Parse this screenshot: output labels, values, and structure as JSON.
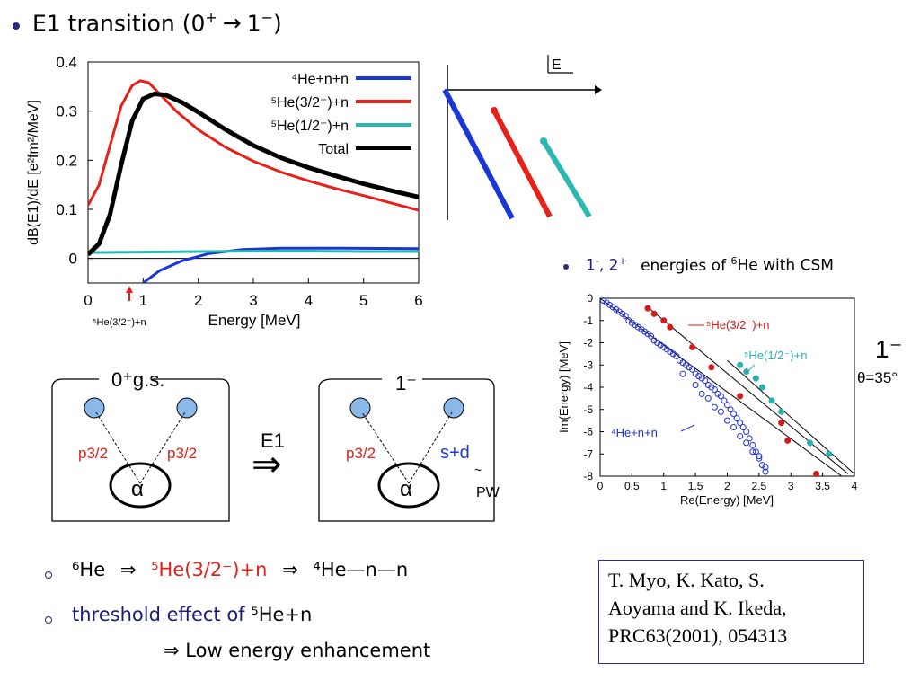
{
  "heading": {
    "text": "E1 transition (0",
    "sup": "+",
    "arrow": "→",
    "tail": "1",
    "tail_sup": "−",
    "close": ")"
  },
  "main_plot": {
    "ylabel": "dB(E1)/dE [e²fm²/MeV]",
    "xlabel": "Energy [MeV]",
    "threshold_label": "⁵He(3/2⁻)+n",
    "x_ticks": [
      "0",
      "1",
      "2",
      "3",
      "4",
      "5",
      "6"
    ],
    "y_ticks": [
      "0",
      "0.1",
      "0.2",
      "0.3",
      "0.4"
    ],
    "legend": [
      {
        "label": "⁴He+n+n",
        "color": "#1a35d8"
      },
      {
        "label": "⁵He(3/2⁻)+n",
        "color": "#e8201a"
      },
      {
        "label": "⁵He(1/2⁻)+n",
        "color": "#2bb8b0"
      },
      {
        "label": "Total",
        "color": "#000000"
      }
    ]
  },
  "schematic": {
    "axis_label": "E"
  },
  "csm_title": {
    "prefix": "1",
    "prefix_sup": "-",
    "mid": ", 2",
    "mid_sup": "+",
    "rest": "energies of ",
    "nuc_sup": "6",
    "nuc": "He with CSM"
  },
  "csm_plot": {
    "xlabel": "Re(Energy) [MeV]",
    "ylabel": "Im(Energy) [MeV]",
    "x_ticks": [
      "0",
      "0.5",
      "1",
      "1.5",
      "2",
      "2.5",
      "3",
      "3.5",
      "4"
    ],
    "y_ticks": [
      "0",
      "-1",
      "-2",
      "-3",
      "-4",
      "-5",
      "-6",
      "-7",
      "-8"
    ],
    "ann_red": "⁵He(3/2⁻)+n",
    "ann_cyan": "⁵He(1/2⁻)+n",
    "ann_blue": "⁴He+n+n",
    "state": "1⁻",
    "theta": "θ=35°"
  },
  "diagram": {
    "left_title": "0⁺g.s.",
    "left_p1": "p3/2",
    "left_p2": "p3/2",
    "alpha": "α",
    "mid_label": "E1",
    "mid_arrow": "⇒",
    "right_title": "1⁻",
    "right_p": "p3/2",
    "right_sd": "s+d",
    "right_pw": "PW"
  },
  "bullets": [
    {
      "parts": [
        "⁶He",
        "⇒",
        "⁵He(3/2⁻)+n",
        "⇒",
        "⁴He—n—n"
      ]
    },
    {
      "parts": [
        "threshold effect of",
        "⁵He+n"
      ]
    },
    {
      "parts": [
        "⇒ Low energy enhancement"
      ]
    }
  ],
  "reference": {
    "line1": "T. Myo, K. Kato, S.",
    "line2": "Aoyama and K. Ikeda,",
    "line3": "PRC63(2001),   054313"
  },
  "chart_data": [
    {
      "type": "line",
      "title": "",
      "xlabel": "Energy [MeV]",
      "ylabel": "dB(E1)/dE [e²fm²/MeV]",
      "xlim": [
        0,
        6
      ],
      "ylim": [
        -0.05,
        0.4
      ],
      "legend_position": "top-right",
      "series": [
        {
          "name": "⁴He+n+n",
          "color": "#1a35d8",
          "x": [
            1.0,
            1.3,
            1.7,
            2.2,
            2.8,
            3.5,
            4.5,
            6.0
          ],
          "y": [
            -0.05,
            -0.025,
            -0.005,
            0.01,
            0.018,
            0.021,
            0.021,
            0.02
          ]
        },
        {
          "name": "⁵He(3/2⁻)+n",
          "color": "#e8201a",
          "x": [
            0,
            0.2,
            0.4,
            0.6,
            0.8,
            0.95,
            1.1,
            1.3,
            1.6,
            2.0,
            2.5,
            3.0,
            3.5,
            4.0,
            4.5,
            5.0,
            5.5,
            6.0
          ],
          "y": [
            0.108,
            0.15,
            0.23,
            0.31,
            0.352,
            0.362,
            0.358,
            0.335,
            0.3,
            0.262,
            0.226,
            0.198,
            0.176,
            0.158,
            0.142,
            0.128,
            0.113,
            0.098
          ]
        },
        {
          "name": "⁵He(1/2⁻)+n",
          "color": "#2bb8b0",
          "x": [
            0,
            1,
            2,
            3,
            4,
            5,
            6
          ],
          "y": [
            0.012,
            0.013,
            0.014,
            0.015,
            0.015,
            0.014,
            0.014
          ]
        },
        {
          "name": "Total",
          "color": "#000000",
          "x": [
            0,
            0.2,
            0.4,
            0.6,
            0.8,
            1.0,
            1.2,
            1.4,
            1.7,
            2.0,
            2.5,
            3.0,
            3.5,
            4.0,
            4.5,
            5.0,
            5.5,
            6.0
          ],
          "y": [
            0.008,
            0.03,
            0.09,
            0.19,
            0.28,
            0.325,
            0.335,
            0.333,
            0.318,
            0.298,
            0.262,
            0.23,
            0.205,
            0.185,
            0.168,
            0.152,
            0.138,
            0.125
          ]
        }
      ]
    },
    {
      "type": "scatter",
      "title": "",
      "xlabel": "Re(Energy) [MeV]",
      "ylabel": "Im(Energy) [MeV]",
      "xlim": [
        0,
        4
      ],
      "ylim": [
        -8,
        0
      ],
      "lines": [
        {
          "x": [
            0,
            3.8
          ],
          "y": [
            0,
            -8
          ]
        },
        {
          "x": [
            0.75,
            3.9
          ],
          "y": [
            -0.4,
            -7.9
          ]
        },
        {
          "x": [
            2.0,
            4.0
          ],
          "y": [
            -2.8,
            -7.9
          ]
        }
      ],
      "series": [
        {
          "name": "⁵He(3/2⁻)+n",
          "color": "#d21a1a",
          "x": [
            0.75,
            0.85,
            1.0,
            1.1,
            1.45,
            1.75,
            2.2,
            2.85,
            2.95,
            3.4
          ],
          "y": [
            -0.45,
            -0.7,
            -1.0,
            -1.3,
            -2.2,
            -3.1,
            -4.4,
            -5.6,
            -6.4,
            -7.9
          ]
        },
        {
          "name": "⁵He(1/2⁻)+n",
          "color": "#2bb0ae",
          "x": [
            2.2,
            2.3,
            2.45,
            2.55,
            2.7,
            2.85,
            3.3,
            3.6
          ],
          "y": [
            -3.0,
            -3.3,
            -3.6,
            -4.0,
            -4.6,
            -5.1,
            -6.5,
            -7.0
          ]
        },
        {
          "name": "⁴He+n+n",
          "color": "#1f2fd0",
          "x": [
            0.05,
            0.1,
            0.15,
            0.2,
            0.25,
            0.3,
            0.35,
            0.4,
            0.45,
            0.5,
            0.55,
            0.6,
            0.65,
            0.7,
            0.75,
            0.8,
            0.85,
            0.9,
            0.95,
            1.0,
            1.05,
            1.1,
            1.15,
            1.2,
            1.25,
            1.3,
            1.35,
            1.4,
            1.45,
            1.5,
            1.55,
            1.6,
            1.65,
            1.7,
            1.75,
            1.8,
            1.85,
            1.9,
            1.95,
            2.0,
            2.05,
            2.1,
            2.15,
            2.2,
            2.25,
            2.3,
            2.35,
            2.4,
            2.45,
            2.5,
            2.55,
            2.6,
            1.3,
            1.5,
            1.7,
            1.9,
            2.1,
            2.3,
            2.5,
            1.6,
            1.8,
            2.0,
            2.2,
            2.4,
            2.6
          ],
          "y": [
            -0.1,
            -0.2,
            -0.3,
            -0.4,
            -0.5,
            -0.6,
            -0.7,
            -0.8,
            -1.0,
            -1.1,
            -1.2,
            -1.3,
            -1.4,
            -1.5,
            -1.6,
            -1.7,
            -1.9,
            -2.0,
            -2.1,
            -2.2,
            -2.3,
            -2.4,
            -2.5,
            -2.6,
            -2.8,
            -2.9,
            -3.0,
            -3.1,
            -3.2,
            -3.4,
            -3.5,
            -3.6,
            -3.7,
            -3.9,
            -4.0,
            -4.1,
            -4.3,
            -4.4,
            -4.6,
            -4.8,
            -5.0,
            -5.2,
            -5.4,
            -5.6,
            -5.8,
            -6.0,
            -6.3,
            -6.6,
            -6.9,
            -7.2,
            -7.5,
            -7.8,
            -3.4,
            -3.9,
            -4.5,
            -5.1,
            -5.8,
            -6.5,
            -7.1,
            -4.3,
            -4.9,
            -5.5,
            -6.2,
            -6.9,
            -7.6
          ]
        }
      ]
    }
  ]
}
